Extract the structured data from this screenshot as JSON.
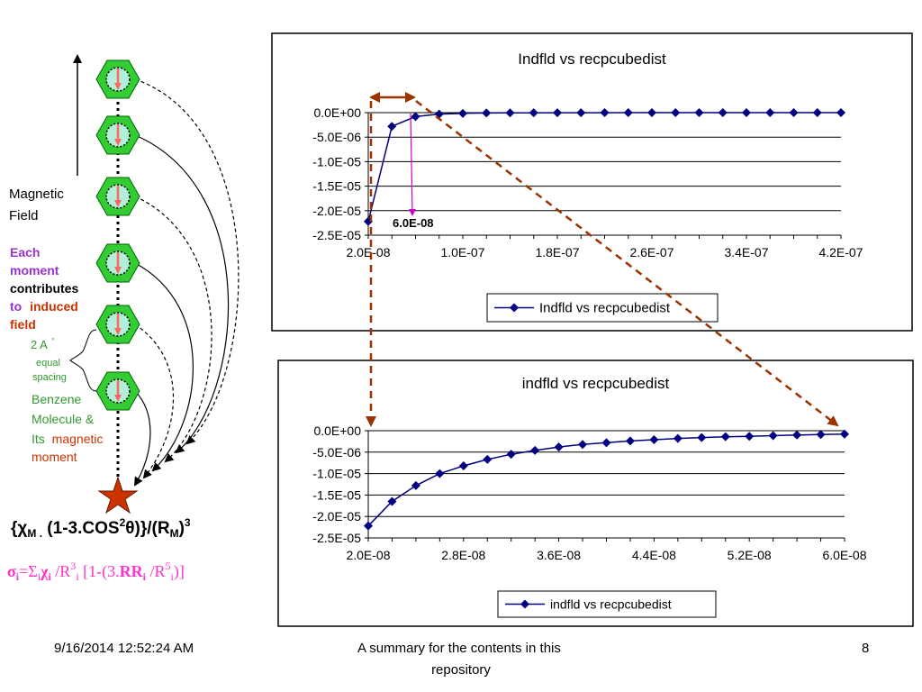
{
  "left_panel": {
    "magnetic_field_label": [
      "Magnetic",
      "Field"
    ],
    "moment_note": [
      "Each",
      "moment",
      "contributes",
      "to",
      "induced",
      "field"
    ],
    "spacing_label": [
      "2 A",
      "°",
      "equal",
      "spacing"
    ],
    "benzene_label": [
      "Benzene",
      "Molecule &",
      "Its",
      "magnetic",
      "moment"
    ],
    "formula_1": {
      "open": "{",
      "chi": "χ",
      "sub_m": "M .",
      "part_a": " (1-3.COS",
      "sup_2": "2",
      "theta": "θ",
      "part_b": ")}/(R",
      "sub_m2": "M",
      "close": ")",
      "sup_3": "3"
    },
    "formula_2": {
      "sigma": "σ",
      "sub_i": "i",
      "eq": "=Σ",
      "sub_i2": "i",
      "chi": "χ",
      "sub_i3": "i",
      "div": " /R",
      "sup_3": "3",
      "sub_i4": "i",
      "bracket": " [1-(3.",
      "rr": "RR",
      "sub_i5": "i",
      "div2": " /R",
      "sup_5": "5",
      "sub_i6": "i",
      "end": ")]"
    },
    "colors": {
      "hexagon": "#33cc33",
      "ring_fill": "#b3f0d9",
      "arrow": "#ff6666",
      "formula_pink": "#ff33cc",
      "green_text": "#339933",
      "purple_text": "#9933cc",
      "orange_text": "#cc3300",
      "star": "#cc3300"
    }
  },
  "annotation_label": "6.0E-08",
  "footer": {
    "date": "9/16/2014 12:52:24 AM",
    "summary_line1": "A summary for the contents in this",
    "summary_line2": "repository",
    "page": "8"
  },
  "chart_data": [
    {
      "type": "line",
      "title": "Indfld vs recpcubedist",
      "legend": "Indfld vs recpcubedist",
      "legend_position": "bottom",
      "grid": true,
      "xlim": [
        2e-08,
        4.2e-07
      ],
      "ylim": [
        -2.5e-05,
        0
      ],
      "x_tick_labels": [
        "2.0E-08",
        "1.0E-07",
        "1.8E-07",
        "2.6E-07",
        "3.4E-07",
        "4.2E-07"
      ],
      "y_tick_labels": [
        "0.0E+00",
        "-5.0E-06",
        "-1.0E-05",
        "-1.5E-05",
        "-2.0E-05",
        "-2.5E-05"
      ],
      "x": [
        2e-08,
        4e-08,
        6e-08,
        8e-08,
        1e-07,
        1.2e-07,
        1.4e-07,
        1.6e-07,
        1.8e-07,
        2e-07,
        2.2e-07,
        2.4e-07,
        2.6e-07,
        2.8e-07,
        3e-07,
        3.2e-07,
        3.4e-07,
        3.6e-07,
        3.8e-07,
        4e-07,
        4.2e-07
      ],
      "values": [
        -2.22e-05,
        -2.8e-06,
        -8e-07,
        -3e-07,
        -1.5e-07,
        -8e-08,
        -5e-08,
        -3e-08,
        -2e-08,
        -1.5e-08,
        -1e-08,
        -8e-09,
        -6e-09,
        -5e-09,
        -4e-09,
        -3e-09,
        -2.5e-09,
        -2e-09,
        -1.5e-09,
        -1.2e-09,
        -1e-09
      ],
      "color": "#000080"
    },
    {
      "type": "line",
      "title": "indfld vs recpcubedist",
      "legend": "indfld vs recpcubedist",
      "legend_position": "bottom",
      "grid": true,
      "xlim": [
        2e-08,
        6e-08
      ],
      "ylim": [
        -2.5e-05,
        0
      ],
      "x_tick_labels": [
        "2.0E-08",
        "2.8E-08",
        "3.6E-08",
        "4.4E-08",
        "5.2E-08",
        "6.0E-08"
      ],
      "y_tick_labels": [
        "0.0E+00",
        "-5.0E-06",
        "-1.0E-05",
        "-1.5E-05",
        "-2.0E-05",
        "-2.5E-05"
      ],
      "x": [
        2e-08,
        2.2e-08,
        2.4e-08,
        2.6e-08,
        2.8e-08,
        3e-08,
        3.2e-08,
        3.4e-08,
        3.6e-08,
        3.8e-08,
        4e-08,
        4.2e-08,
        4.4e-08,
        4.6e-08,
        4.8e-08,
        5e-08,
        5.2e-08,
        5.4e-08,
        5.6e-08,
        5.8e-08,
        6e-08
      ],
      "values": [
        -2.22e-05,
        -1.65e-05,
        -1.28e-05,
        -1e-05,
        -8.2e-06,
        -6.7e-06,
        -5.5e-06,
        -4.6e-06,
        -3.8e-06,
        -3.2e-06,
        -2.8e-06,
        -2.4e-06,
        -2.1e-06,
        -1.8e-06,
        -1.6e-06,
        -1.4e-06,
        -1.3e-06,
        -1.15e-06,
        -1e-06,
        -9e-07,
        -8e-07
      ],
      "color": "#000080"
    }
  ]
}
